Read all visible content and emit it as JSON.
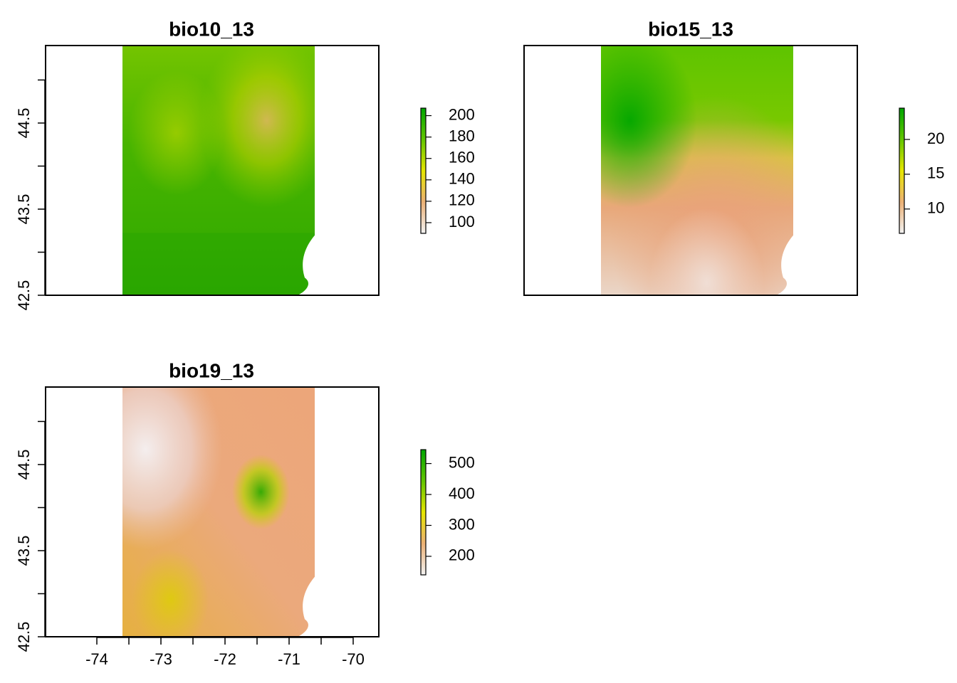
{
  "chart_data": [
    {
      "type": "heatmap",
      "title": "bio10_13",
      "xlabel": "",
      "ylabel": "",
      "xlim": [
        -74.8,
        -69.6
      ],
      "ylim": [
        42.5,
        45.4
      ],
      "y_ticks": [
        42.5,
        43.0,
        43.5,
        44.0,
        44.5,
        45.0
      ],
      "y_tick_labels": [
        "42.5",
        "43.5",
        "44.5"
      ],
      "x_ticks": [],
      "x_tick_labels": [],
      "raster_extent": {
        "xmin": -73.6,
        "xmax": -70.6,
        "ymin": 42.5,
        "ymax": 45.4
      },
      "colorbar": {
        "min": 90,
        "max": 207,
        "ticks": [
          100,
          120,
          140,
          160,
          180,
          200
        ],
        "tick_labels": [
          "100",
          "120",
          "140",
          "160",
          "180",
          "200"
        ]
      },
      "colormap": [
        "#F2F2F2",
        "#ECB176",
        "#E6E600",
        "#63C600",
        "#00A600"
      ]
    },
    {
      "type": "heatmap",
      "title": "bio15_13",
      "xlabel": "",
      "ylabel": "",
      "xlim": [
        -74.8,
        -69.6
      ],
      "ylim": [
        42.5,
        45.4
      ],
      "y_ticks": [],
      "y_tick_labels": [],
      "x_ticks": [],
      "x_tick_labels": [],
      "raster_extent": {
        "xmin": -73.6,
        "xmax": -70.6,
        "ymin": 42.5,
        "ymax": 45.4
      },
      "colorbar": {
        "min": 6.5,
        "max": 24.5,
        "ticks": [
          10,
          15,
          20
        ],
        "tick_labels": [
          "10",
          "15",
          "20"
        ]
      },
      "colormap": [
        "#F2F2F2",
        "#ECB176",
        "#E6E600",
        "#63C600",
        "#00A600"
      ]
    },
    {
      "type": "heatmap",
      "title": "bio19_13",
      "xlabel": "",
      "ylabel": "",
      "xlim": [
        -74.8,
        -69.6
      ],
      "ylim": [
        42.5,
        45.4
      ],
      "y_ticks": [
        42.5,
        43.0,
        43.5,
        44.0,
        44.5,
        45.0
      ],
      "y_tick_labels": [
        "42.5",
        "43.5",
        "44.5"
      ],
      "x_ticks": [
        -74,
        -73.5,
        -73,
        -72.5,
        -72,
        -71.5,
        -71,
        -70.5,
        -70
      ],
      "x_tick_labels": [
        "-74",
        "-73",
        "-72",
        "-71",
        "-70"
      ],
      "raster_extent": {
        "xmin": -73.6,
        "xmax": -70.6,
        "ymin": 42.5,
        "ymax": 45.4
      },
      "colorbar": {
        "min": 140,
        "max": 545,
        "ticks": [
          200,
          300,
          400,
          500
        ],
        "tick_labels": [
          "200",
          "300",
          "400",
          "500"
        ]
      },
      "colormap": [
        "#F2F2F2",
        "#ECB176",
        "#E6E600",
        "#63C600",
        "#00A600"
      ]
    }
  ]
}
